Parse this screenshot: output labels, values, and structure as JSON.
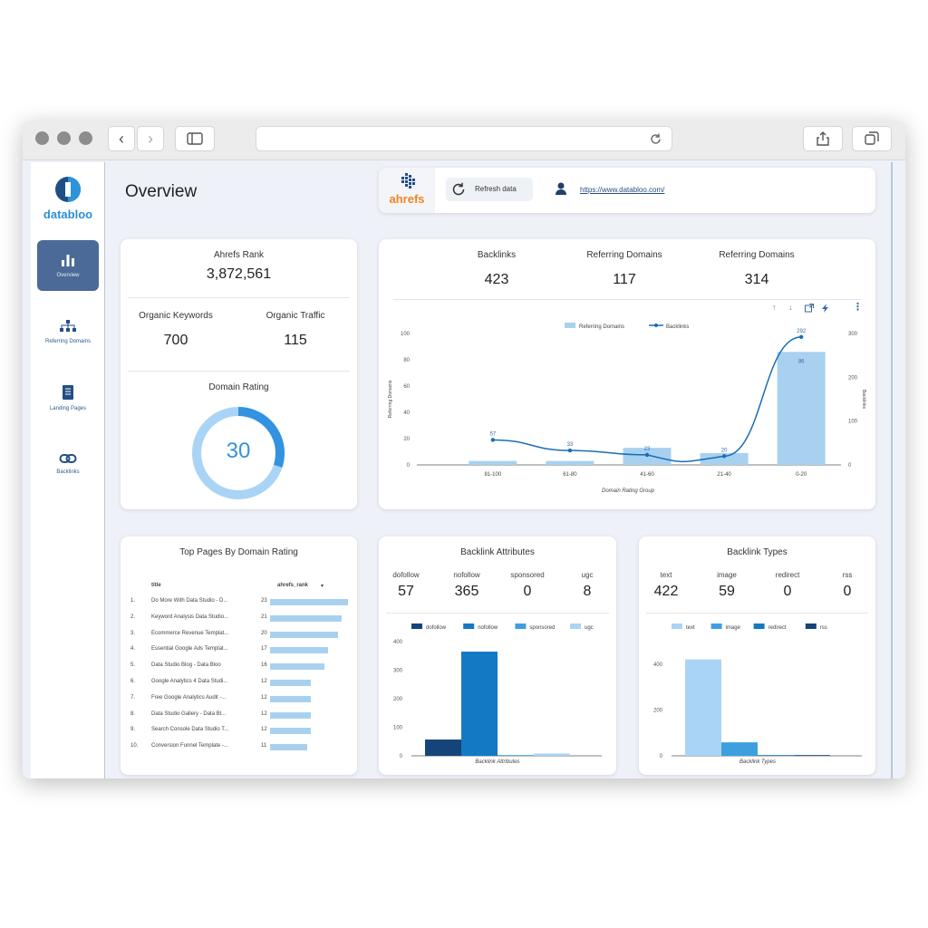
{
  "app": {
    "brand": "databloo",
    "url_display": "https://www.databloo.com/"
  },
  "colors": {
    "primary": "#2e7cc4",
    "sidebar_active": "#4b6a97",
    "bar_light": "#a8d1f0",
    "line": "#1a6eb4",
    "donut": "#3393e0",
    "donut_light": "#a9d4f5"
  },
  "header": {
    "title": "Overview",
    "ahrefs_logo": "ahrefs",
    "refresh_label": "Refresh data",
    "site_link": "https://www.databloo.com/"
  },
  "sidebar": {
    "items": [
      {
        "label": "Overview",
        "icon": "bar-chart-icon",
        "active": true
      },
      {
        "label": "Referring Domains",
        "icon": "sitemap-icon",
        "active": false
      },
      {
        "label": "Landing Pages",
        "icon": "document-icon",
        "active": false
      },
      {
        "label": "Backlinks",
        "icon": "link-icon",
        "active": false
      }
    ]
  },
  "rank_card": {
    "ahrefs_rank_label": "Ahrefs Rank",
    "ahrefs_rank_value": "3,872,561",
    "organic_keywords_label": "Organic Keywords",
    "organic_keywords_value": "700",
    "organic_traffic_label": "Organic Traffic",
    "organic_traffic_value": "115",
    "domain_rating_label": "Domain Rating",
    "domain_rating_value": "30"
  },
  "summary": {
    "backlinks_label": "Backlinks",
    "backlinks_value": "423",
    "ref_domains_label": "Referring Domains",
    "ref_domains_value": "117",
    "ref_domains2_label": "Referring Domains",
    "ref_domains2_value": "314"
  },
  "chart_data": [
    {
      "type": "bar",
      "combo": "bar+line",
      "categories": [
        "81-100",
        "61-80",
        "41-60",
        "21-40",
        "0-20"
      ],
      "series": [
        {
          "name": "Referring Domains",
          "type": "bar",
          "axis": "left",
          "values": [
            3,
            3,
            13,
            9,
            86
          ]
        },
        {
          "name": "Backlinks",
          "type": "line",
          "axis": "right",
          "values": [
            57,
            33,
            23,
            20,
            292
          ]
        }
      ],
      "bar_labels": [
        "",
        "",
        "",
        "",
        "86"
      ],
      "line_labels": [
        "57",
        "33",
        "23",
        "20",
        "292"
      ],
      "xlabel": "Domain Rating Group",
      "ylabel": "Referring Domains",
      "y2label": "Backlinks",
      "ylim": [
        0,
        100
      ],
      "y2lim": [
        0,
        300
      ],
      "yticks": [
        "0",
        "20",
        "40",
        "60",
        "80",
        "100"
      ],
      "y2ticks": [
        "0",
        "100",
        "200",
        "300"
      ],
      "legend": "top-center"
    },
    {
      "type": "table",
      "title": "Top Pages By Domain Rating",
      "columns": [
        "title",
        "ahrefs_rank"
      ],
      "sort_icon": "▾",
      "rows": [
        {
          "n": "1.",
          "title": "Do More With Data Studio - D...",
          "value": 23
        },
        {
          "n": "2.",
          "title": "Keyword Analysis Data Studio...",
          "value": 21
        },
        {
          "n": "3.",
          "title": "Ecommerce Revenue Templat...",
          "value": 20
        },
        {
          "n": "4.",
          "title": "Essential Google Ads Templat...",
          "value": 17
        },
        {
          "n": "5.",
          "title": "Data Studio Blog - Data Bloo",
          "value": 16
        },
        {
          "n": "6.",
          "title": "Google Analytics 4 Data Studi...",
          "value": 12
        },
        {
          "n": "7.",
          "title": "Free Google Analytics Audit -...",
          "value": 12
        },
        {
          "n": "8.",
          "title": "Data Studio Gallery - Data Bl...",
          "value": 12
        },
        {
          "n": "9.",
          "title": "Search Console Data Studio T...",
          "value": 12
        },
        {
          "n": "10.",
          "title": "Conversion Funnel Template -...",
          "value": 11
        }
      ]
    },
    {
      "type": "bar",
      "title": "Backlink Attributes",
      "categories": [
        "Backlink Attributes"
      ],
      "xlabel": "Backlink Attributes",
      "series": [
        {
          "name": "dofollow",
          "values": [
            57
          ],
          "color": "#15447a"
        },
        {
          "name": "nofollow",
          "values": [
            365
          ],
          "color": "#1479c4"
        },
        {
          "name": "sponsored",
          "values": [
            0
          ],
          "color": "#3d9fe0"
        },
        {
          "name": "ugc",
          "values": [
            8
          ],
          "color": "#a9d4f5"
        }
      ],
      "ylim": [
        0,
        400
      ],
      "yticks": [
        "0",
        "100",
        "200",
        "300",
        "400"
      ]
    },
    {
      "type": "bar",
      "title": "Backlink Types",
      "categories": [
        "Backlink Types"
      ],
      "xlabel": "Backlink Types",
      "series": [
        {
          "name": "text",
          "values": [
            422
          ],
          "color": "#a9d4f5"
        },
        {
          "name": "image",
          "values": [
            59
          ],
          "color": "#3d9fe0"
        },
        {
          "name": "redirect",
          "values": [
            0
          ],
          "color": "#1479c4"
        },
        {
          "name": "rss",
          "values": [
            0
          ],
          "color": "#15447a"
        }
      ],
      "ylim": [
        0,
        500
      ],
      "yticks": [
        "0",
        "200",
        "400"
      ]
    }
  ],
  "attributes_card": {
    "title": "Backlink Attributes",
    "stats": [
      {
        "label": "dofollow",
        "value": "57"
      },
      {
        "label": "nofollow",
        "value": "365"
      },
      {
        "label": "sponsored",
        "value": "0"
      },
      {
        "label": "ugc",
        "value": "8"
      }
    ]
  },
  "types_card": {
    "title": "Backlink Types",
    "stats": [
      {
        "label": "text",
        "value": "422"
      },
      {
        "label": "image",
        "value": "59"
      },
      {
        "label": "redirect",
        "value": "0"
      },
      {
        "label": "rss",
        "value": "0"
      }
    ]
  }
}
